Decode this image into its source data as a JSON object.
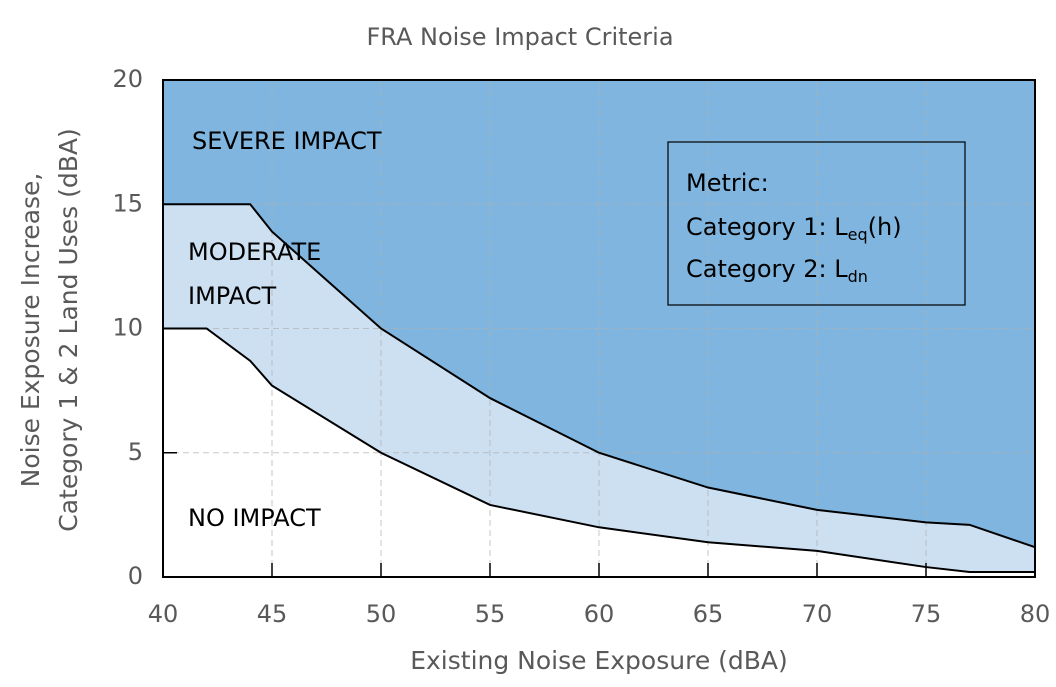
{
  "chart_data": {
    "type": "area",
    "title": "FRA Noise Impact Criteria",
    "x_label": "Existing Noise Exposure (dBA)",
    "y_label": [
      "Noise Exposure Increase,",
      "Category 1 & 2 Land Uses (dBA)"
    ],
    "x": [
      40,
      42,
      44,
      45,
      50,
      55,
      60,
      65,
      70,
      75,
      77,
      80
    ],
    "series": [
      {
        "color": "#000000",
        "fill": "#cde0f2",
        "values": [
          15,
          15,
          15,
          13.9,
          10,
          7.2,
          5,
          3.6,
          2.7,
          2.2,
          2.1,
          1.2
        ]
      },
      {
        "color": "#000000",
        "fill": "#ffffff",
        "values": [
          10,
          10,
          8.7,
          7.7,
          5,
          2.9,
          2,
          1.4,
          1.05,
          0.4,
          0.2,
          0.2
        ]
      }
    ],
    "background_color": "#7fb5df",
    "xlim": [
      40,
      80
    ],
    "ylim": [
      0,
      20
    ],
    "xticks": [
      40,
      45,
      50,
      55,
      60,
      65,
      70,
      75,
      80
    ],
    "yticks": [
      0,
      5,
      10,
      15,
      20
    ],
    "grid": true,
    "annotations": [
      {
        "lines": [
          "SEVERE IMPACT"
        ]
      },
      {
        "lines": [
          "MODERATE",
          "IMPACT"
        ]
      },
      {
        "lines": [
          "NO IMPACT"
        ]
      }
    ],
    "metric_box": {
      "title": "Metric:",
      "lines": [
        {
          "label": "Category 1: ",
          "symbol": "L",
          "subscript": "eq",
          "suffix": "(h)"
        },
        {
          "label": "Category 2: ",
          "symbol": "L",
          "subscript": "dn",
          "suffix": ""
        }
      ]
    }
  }
}
